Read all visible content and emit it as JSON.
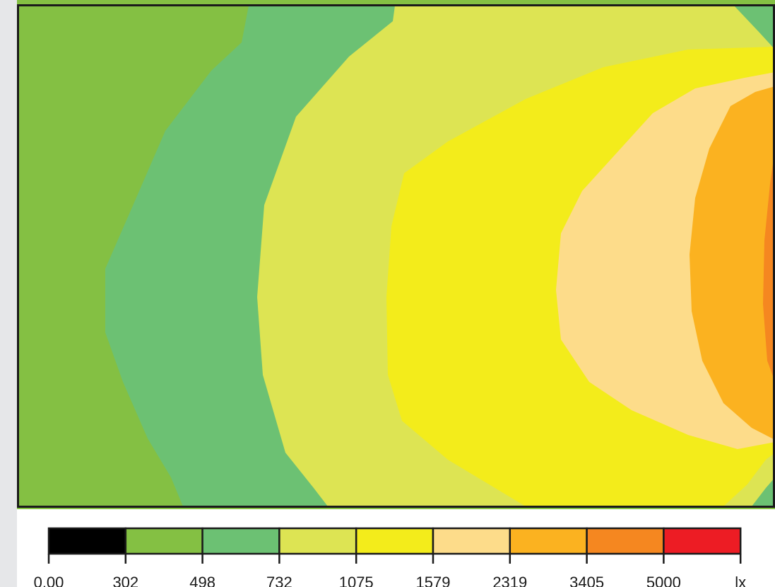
{
  "chart_data": {
    "type": "heatmap",
    "title": "",
    "xlabel": "",
    "ylabel": "",
    "grid": false,
    "legend": "bottom",
    "unit": "lx",
    "levels": [
      {
        "lower": 0.0,
        "upper": 302,
        "color": "#000000"
      },
      {
        "lower": 302,
        "upper": 498,
        "color": "#84c043"
      },
      {
        "lower": 498,
        "upper": 732,
        "color": "#6cc173"
      },
      {
        "lower": 732,
        "upper": 1075,
        "color": "#dde453"
      },
      {
        "lower": 1075,
        "upper": 1579,
        "color": "#f3ec1b"
      },
      {
        "lower": 1579,
        "upper": 2319,
        "color": "#fddc8a"
      },
      {
        "lower": 2319,
        "upper": 3405,
        "color": "#fbb220"
      },
      {
        "lower": 3405,
        "upper": 5000,
        "color": "#f58720"
      },
      {
        "lower": 5000,
        "upper": null,
        "color": "#ed1c24"
      }
    ],
    "tick_labels": [
      "0.00",
      "302",
      "498",
      "732",
      "1075",
      "1579",
      "2319",
      "3405",
      "5000",
      "lx"
    ],
    "regions_left_to_right": [
      {
        "level_lower": 302,
        "color": "#84c043"
      },
      {
        "level_lower": 498,
        "color": "#6cc173"
      },
      {
        "level_lower": 732,
        "color": "#dde453"
      },
      {
        "level_lower": 1075,
        "color": "#f3ec1b"
      },
      {
        "level_lower": 1579,
        "color": "#fddc8a"
      },
      {
        "level_lower": 2319,
        "color": "#fbb220"
      },
      {
        "level_lower": 3405,
        "color": "#f58720"
      }
    ]
  }
}
